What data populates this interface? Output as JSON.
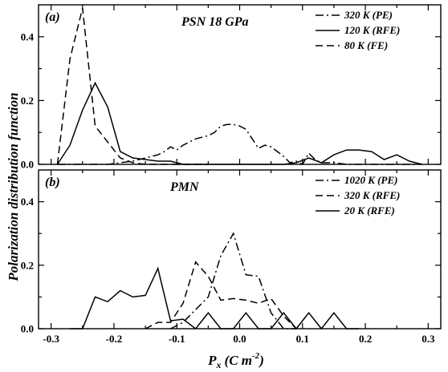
{
  "figure": {
    "ylabel": "Polarization distribution function",
    "xlabel_main": "P",
    "xlabel_sub": "x",
    "xlabel_unit": "(C m",
    "xlabel_exp": "-2",
    "xlabel_close": ")"
  },
  "chart_data": [
    {
      "type": "line",
      "panel": "(a)",
      "title": "PSN 18 GPa",
      "xlim": [
        -0.32,
        0.32
      ],
      "ylim": [
        0,
        0.5
      ],
      "xticks": [
        -0.3,
        -0.2,
        -0.1,
        0.0,
        0.1,
        0.2,
        0.3
      ],
      "yticks": [
        0.0,
        0.2,
        0.4
      ],
      "ytick_labels": [
        "0.0",
        "0.2",
        "0.4"
      ],
      "legend_position": "top-right",
      "series": [
        {
          "name": "320 K (PE)",
          "dash": "dashdot",
          "x": [
            -0.29,
            -0.27,
            -0.25,
            -0.23,
            -0.21,
            -0.19,
            -0.17,
            -0.15,
            -0.13,
            -0.12,
            -0.11,
            -0.1,
            -0.09,
            -0.08,
            -0.07,
            -0.06,
            -0.05,
            -0.04,
            -0.03,
            -0.02,
            -0.01,
            0.0,
            0.01,
            0.02,
            0.03,
            0.04,
            0.05,
            0.06,
            0.07,
            0.08,
            0.09,
            0.1,
            0.11,
            0.12,
            0.13,
            0.15,
            0.17,
            0.19,
            0.21,
            0.23,
            0.25,
            0.27,
            0.29
          ],
          "y": [
            0.0,
            0.0,
            0.0,
            0.0,
            0.0,
            0.005,
            0.01,
            0.02,
            0.03,
            0.04,
            0.055,
            0.045,
            0.06,
            0.07,
            0.08,
            0.085,
            0.09,
            0.1,
            0.12,
            0.125,
            0.125,
            0.12,
            0.11,
            0.08,
            0.05,
            0.06,
            0.055,
            0.04,
            0.025,
            0.005,
            0.01,
            0.0,
            0.035,
            0.015,
            0.005,
            0.005,
            0.0,
            0.0,
            0.0,
            0.0,
            0.0,
            0.0,
            0.0
          ]
        },
        {
          "name": "120 K (RFE)",
          "dash": "solid",
          "x": [
            -0.29,
            -0.27,
            -0.25,
            -0.23,
            -0.21,
            -0.19,
            -0.17,
            -0.15,
            -0.13,
            -0.11,
            -0.09,
            -0.07,
            -0.05,
            -0.03,
            -0.01,
            0.01,
            0.03,
            0.05,
            0.07,
            0.09,
            0.11,
            0.13,
            0.15,
            0.17,
            0.19,
            0.21,
            0.23,
            0.25,
            0.27,
            0.29
          ],
          "y": [
            0.0,
            0.06,
            0.17,
            0.255,
            0.18,
            0.04,
            0.02,
            0.015,
            0.01,
            0.01,
            0.0,
            0.0,
            0.0,
            0.0,
            0.0,
            0.0,
            0.0,
            0.0,
            0.0,
            0.005,
            0.02,
            0.005,
            0.03,
            0.045,
            0.045,
            0.04,
            0.015,
            0.03,
            0.01,
            0.0
          ]
        },
        {
          "name": "80 K (FE)",
          "dash": "dashed",
          "x": [
            -0.29,
            -0.27,
            -0.25,
            -0.23,
            -0.21,
            -0.19,
            -0.17,
            -0.15,
            -0.13,
            -0.11,
            -0.09,
            -0.07,
            -0.05
          ],
          "y": [
            0.0,
            0.33,
            0.49,
            0.12,
            0.07,
            0.02,
            0.005,
            0.0,
            0.0,
            0.0,
            0.0,
            0.0,
            0.0
          ]
        }
      ]
    },
    {
      "type": "line",
      "panel": "(b)",
      "title": "PMN",
      "xlim": [
        -0.32,
        0.32
      ],
      "ylim": [
        0,
        0.5
      ],
      "xticks": [
        -0.3,
        -0.2,
        -0.1,
        0.0,
        0.1,
        0.2,
        0.3
      ],
      "xtick_labels": [
        "-0.3",
        "-0.2",
        "-0.1",
        "0.0",
        "0.1",
        "0.2",
        "0.3"
      ],
      "yticks": [
        0.0,
        0.2,
        0.4
      ],
      "ytick_labels": [
        "0.0",
        "0.2",
        "0.4"
      ],
      "legend_position": "top-right",
      "series": [
        {
          "name": "1020 K (PE)",
          "dash": "dashdot",
          "x": [
            -0.11,
            -0.09,
            -0.07,
            -0.05,
            -0.03,
            -0.01,
            0.01,
            0.03,
            0.05,
            0.07,
            0.09
          ],
          "y": [
            0.0,
            0.02,
            0.06,
            0.1,
            0.23,
            0.3,
            0.17,
            0.165,
            0.05,
            0.0,
            0.0
          ]
        },
        {
          "name": "320 K (RFE)",
          "dash": "dashed",
          "x": [
            -0.15,
            -0.13,
            -0.11,
            -0.09,
            -0.07,
            -0.05,
            -0.03,
            -0.01,
            0.01,
            0.03,
            0.05,
            0.07,
            0.09
          ],
          "y": [
            0.0,
            0.02,
            0.02,
            0.08,
            0.21,
            0.165,
            0.09,
            0.095,
            0.09,
            0.08,
            0.095,
            0.04,
            0.0
          ]
        },
        {
          "name": "20 K (RFE)",
          "dash": "solid",
          "x": [
            -0.27,
            -0.25,
            -0.23,
            -0.21,
            -0.19,
            -0.17,
            -0.15,
            -0.13,
            -0.11,
            -0.09,
            -0.07,
            -0.05,
            -0.03,
            -0.01,
            0.01,
            0.03,
            0.05,
            0.07,
            0.09,
            0.11,
            0.13,
            0.15,
            0.17,
            0.19
          ],
          "y": [
            0.0,
            0.0,
            0.1,
            0.085,
            0.12,
            0.1,
            0.105,
            0.19,
            0.025,
            0.03,
            0.0,
            0.05,
            0.0,
            0.0,
            0.05,
            0.0,
            0.0,
            0.05,
            0.0,
            0.05,
            0.0,
            0.05,
            0.0,
            0.0
          ]
        }
      ]
    }
  ]
}
